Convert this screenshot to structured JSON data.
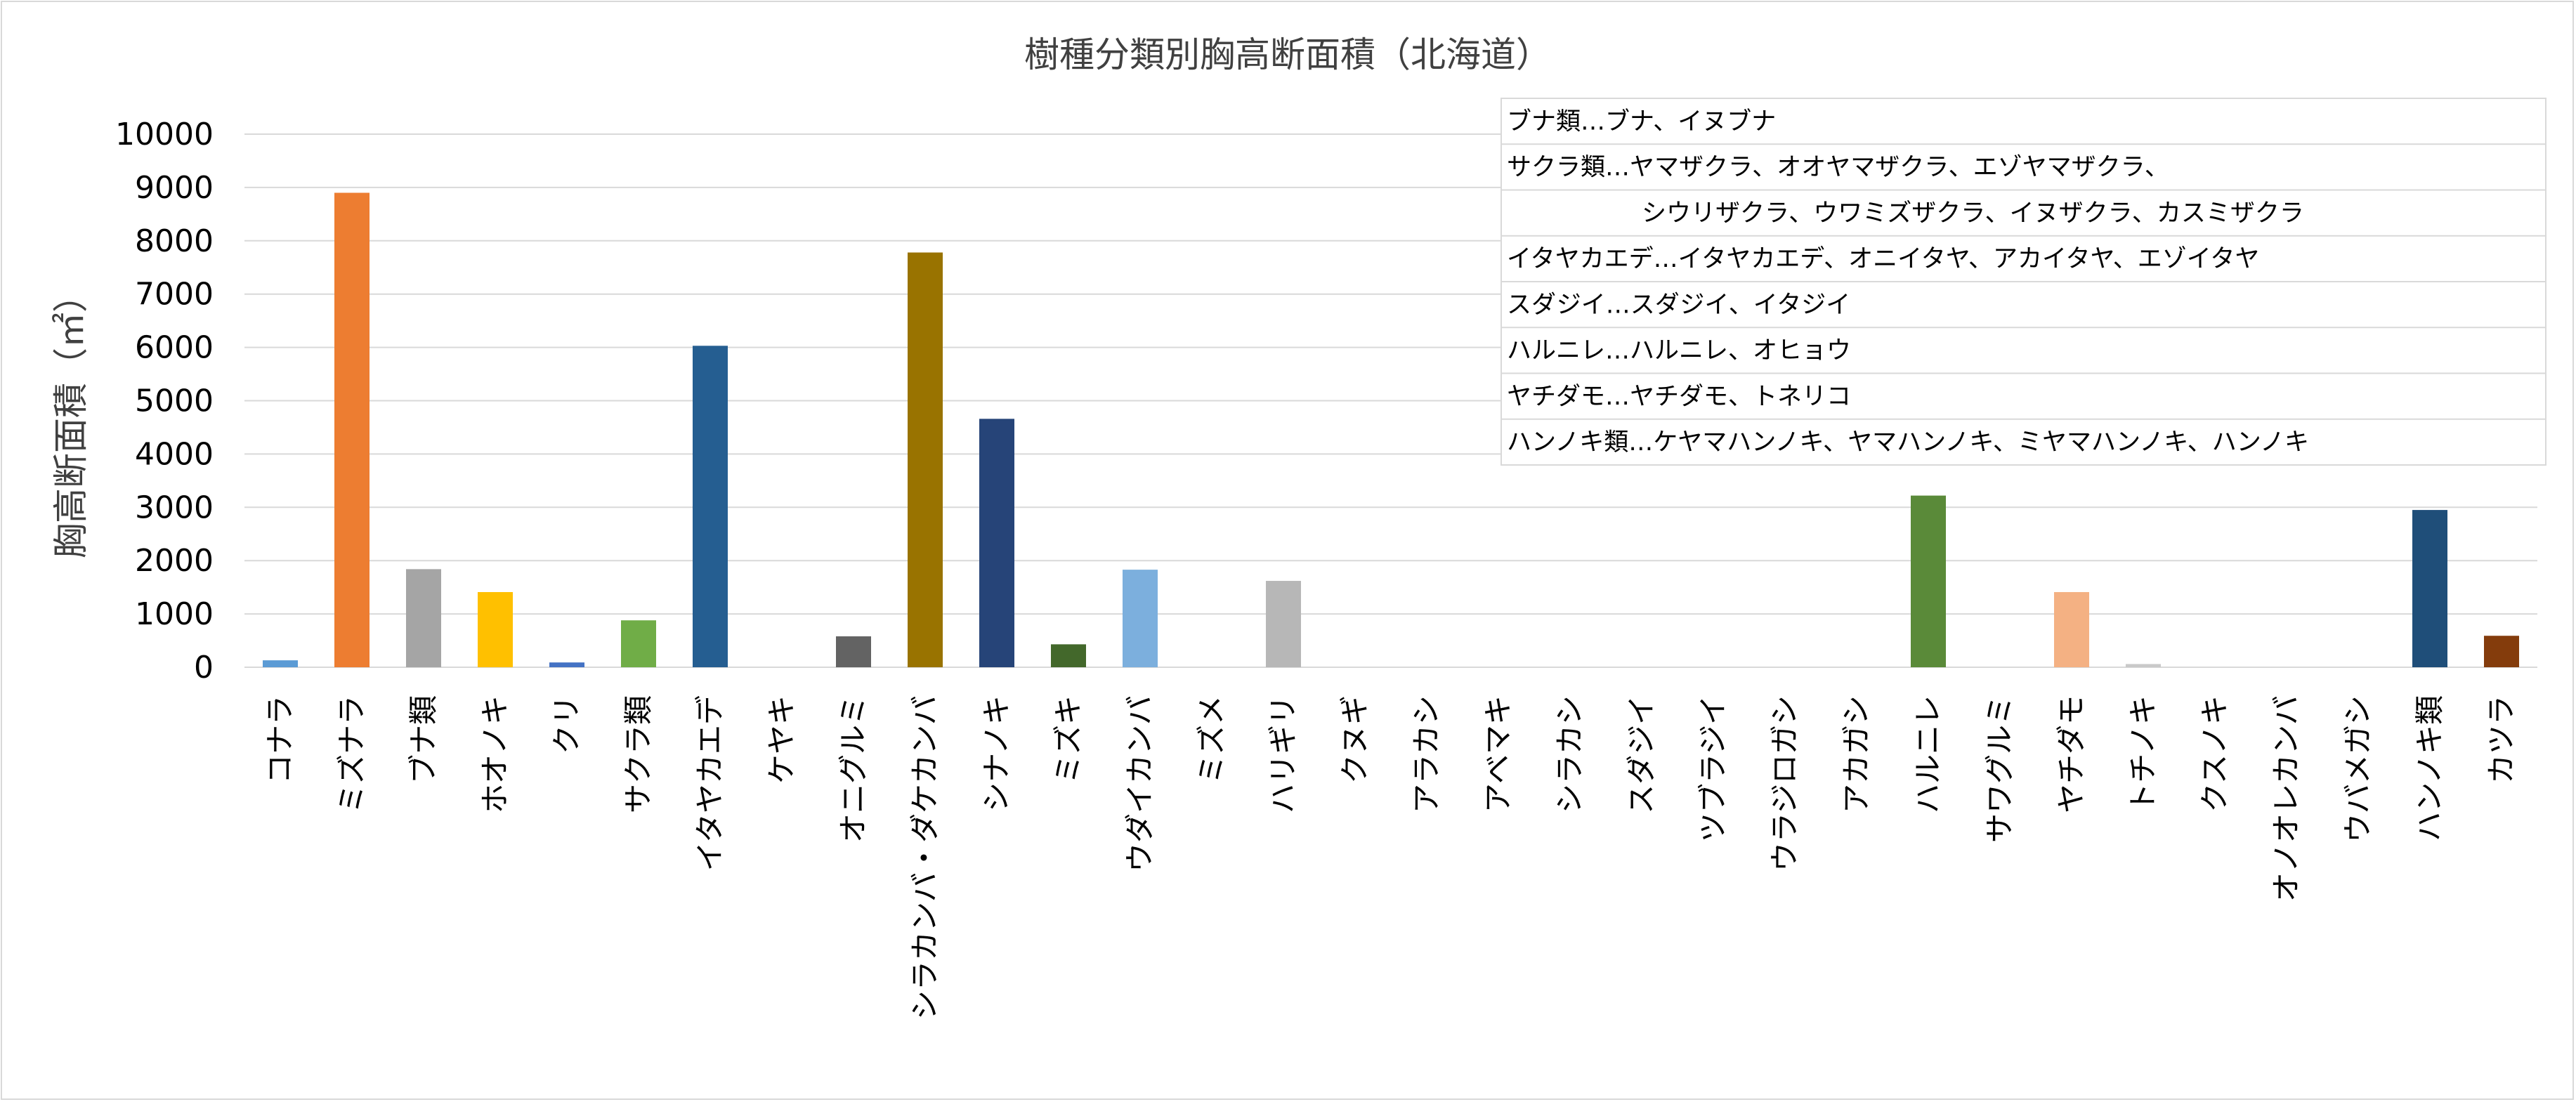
{
  "chart_data": {
    "type": "bar",
    "title": "樹種分類別胸高断面積（北海道）",
    "xlabel": "",
    "ylabel": "胸高断面積（㎡）",
    "ylim": [
      0,
      10000
    ],
    "yticks": [
      0,
      1000,
      2000,
      3000,
      4000,
      5000,
      6000,
      7000,
      8000,
      9000,
      10000
    ],
    "grid": true,
    "categories": [
      "コナラ",
      "ミズナラ",
      "ブナ類",
      "ホオノキ",
      "クリ",
      "サクラ類",
      "イタヤカエデ",
      "ケヤキ",
      "オニグルミ",
      "シラカンバ・ダケカンバ",
      "シナノキ",
      "ミズキ",
      "ウダイカンバ",
      "ミズメ",
      "ハリギリ",
      "クヌギ",
      "アラカシ",
      "アベマキ",
      "シラカシ",
      "スダジイ",
      "ツブラジイ",
      "ウラジロガシ",
      "アカガシ",
      "ハルニレ",
      "サワグルミ",
      "ヤチダモ",
      "トチノキ",
      "クスノキ",
      "オノオレカンバ",
      "ウバメガシ",
      "ハンノキ類",
      "カツラ"
    ],
    "values": [
      130,
      8900,
      1840,
      1410,
      90,
      880,
      6030,
      0,
      580,
      7780,
      4660,
      430,
      1830,
      0,
      1620,
      0,
      0,
      0,
      0,
      0,
      0,
      0,
      0,
      3220,
      0,
      1410,
      60,
      0,
      0,
      0,
      2950,
      590
    ],
    "colors": [
      "#5B9BD5",
      "#ED7D31",
      "#A5A5A5",
      "#FFC000",
      "#4472C4",
      "#70AD47",
      "#255E91",
      "#9E480E",
      "#636363",
      "#997300",
      "#264478",
      "#43682B",
      "#7CAFDD",
      "#F1975A",
      "#B7B7B7",
      "#FFCD33",
      "#698ED0",
      "#8CC168",
      "#327DC2",
      "#D26012",
      "#848484",
      "#CC9A00",
      "#335AA1",
      "#5A8A39",
      "#A0C5E6",
      "#F4B183",
      "#C9C9C9",
      "#FFD966",
      "#8FAADC",
      "#A9D18E",
      "#1F4E79",
      "#843C0C"
    ],
    "legend_notes": [
      "ブナ類…ブナ、イヌブナ",
      "サクラ類…ヤマザクラ、オオヤマザクラ、エゾヤマザクラ、",
      "シウリザクラ、ウワミズザクラ、イヌザクラ、カスミザクラ",
      "イタヤカエデ…イタヤカエデ、オニイタヤ、アカイタヤ、エゾイタヤ",
      "スダジイ…スダジイ、イタジイ",
      "ハルニレ…ハルニレ、オヒョウ",
      "ヤチダモ…ヤチダモ、トネリコ",
      "ハンノキ類…ケヤマハンノキ、ヤマハンノキ、ミヤマハンノキ、ハンノキ"
    ]
  }
}
